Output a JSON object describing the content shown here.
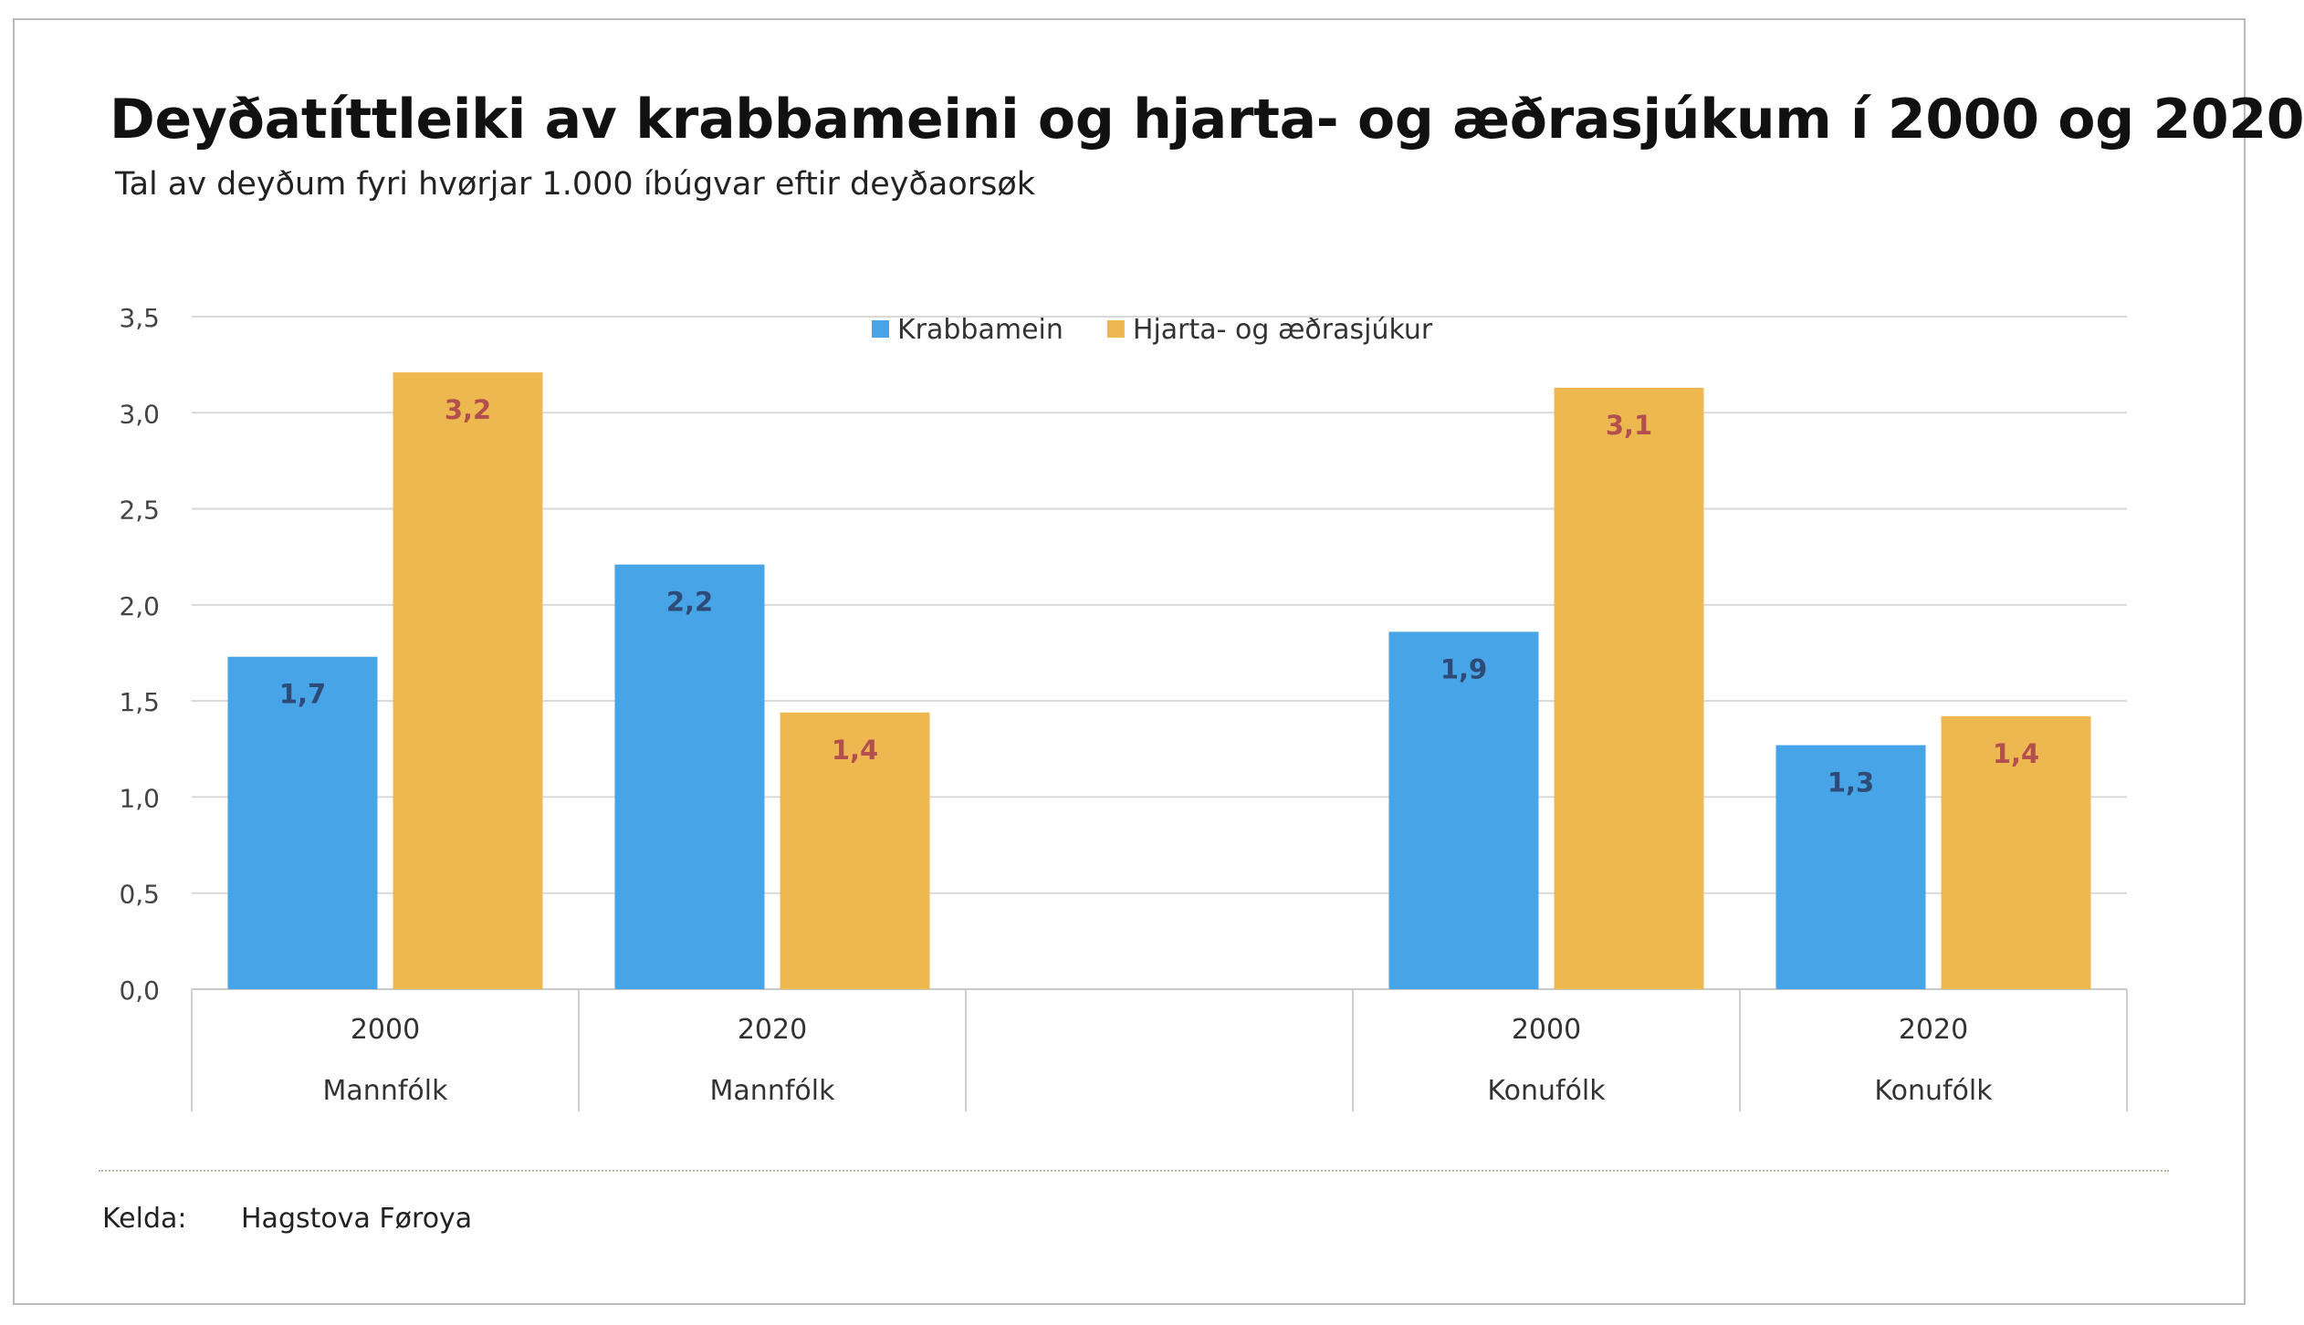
{
  "chart_data": {
    "type": "bar",
    "title": "Deyðatíttleiki av krabbameini og hjarta- og æðrasjúkum í 2000 og 2020",
    "subtitle": "Tal av deyðum fyri hvørjar 1.000 íbúgvar eftir deyðaorsøk",
    "xlabel": "",
    "ylabel": "",
    "ylim": [
      0,
      3.5
    ],
    "yticks": [
      "0,0",
      "0,5",
      "1,0",
      "1,5",
      "2,0",
      "2,5",
      "3,0",
      "3,5"
    ],
    "grid": true,
    "legend_position": "top-center",
    "groups": [
      {
        "year": "2000",
        "population": "Mannfólk"
      },
      {
        "year": "2020",
        "population": "Mannfólk"
      },
      {
        "year": "",
        "population": ""
      },
      {
        "year": "2000",
        "population": "Konufólk"
      },
      {
        "year": "2020",
        "population": "Konufólk"
      }
    ],
    "series": [
      {
        "name": "Krabbamein",
        "color": "#47a4e6",
        "label_color": "#2e4a76",
        "values": [
          1.73,
          2.21,
          null,
          1.86,
          1.27
        ],
        "labels": [
          "1,7",
          "2,2",
          "",
          "1,9",
          "1,3"
        ]
      },
      {
        "name": "Hjarta- og æðrasjúkur",
        "color": "#eeb850",
        "label_color": "#b3504f",
        "values": [
          3.21,
          1.44,
          null,
          3.13,
          1.42
        ],
        "labels": [
          "3,2",
          "1,4",
          "",
          "3,1",
          "1,4"
        ]
      }
    ]
  },
  "source": {
    "label": "Kelda:",
    "value": "Hagstova Føroya"
  }
}
